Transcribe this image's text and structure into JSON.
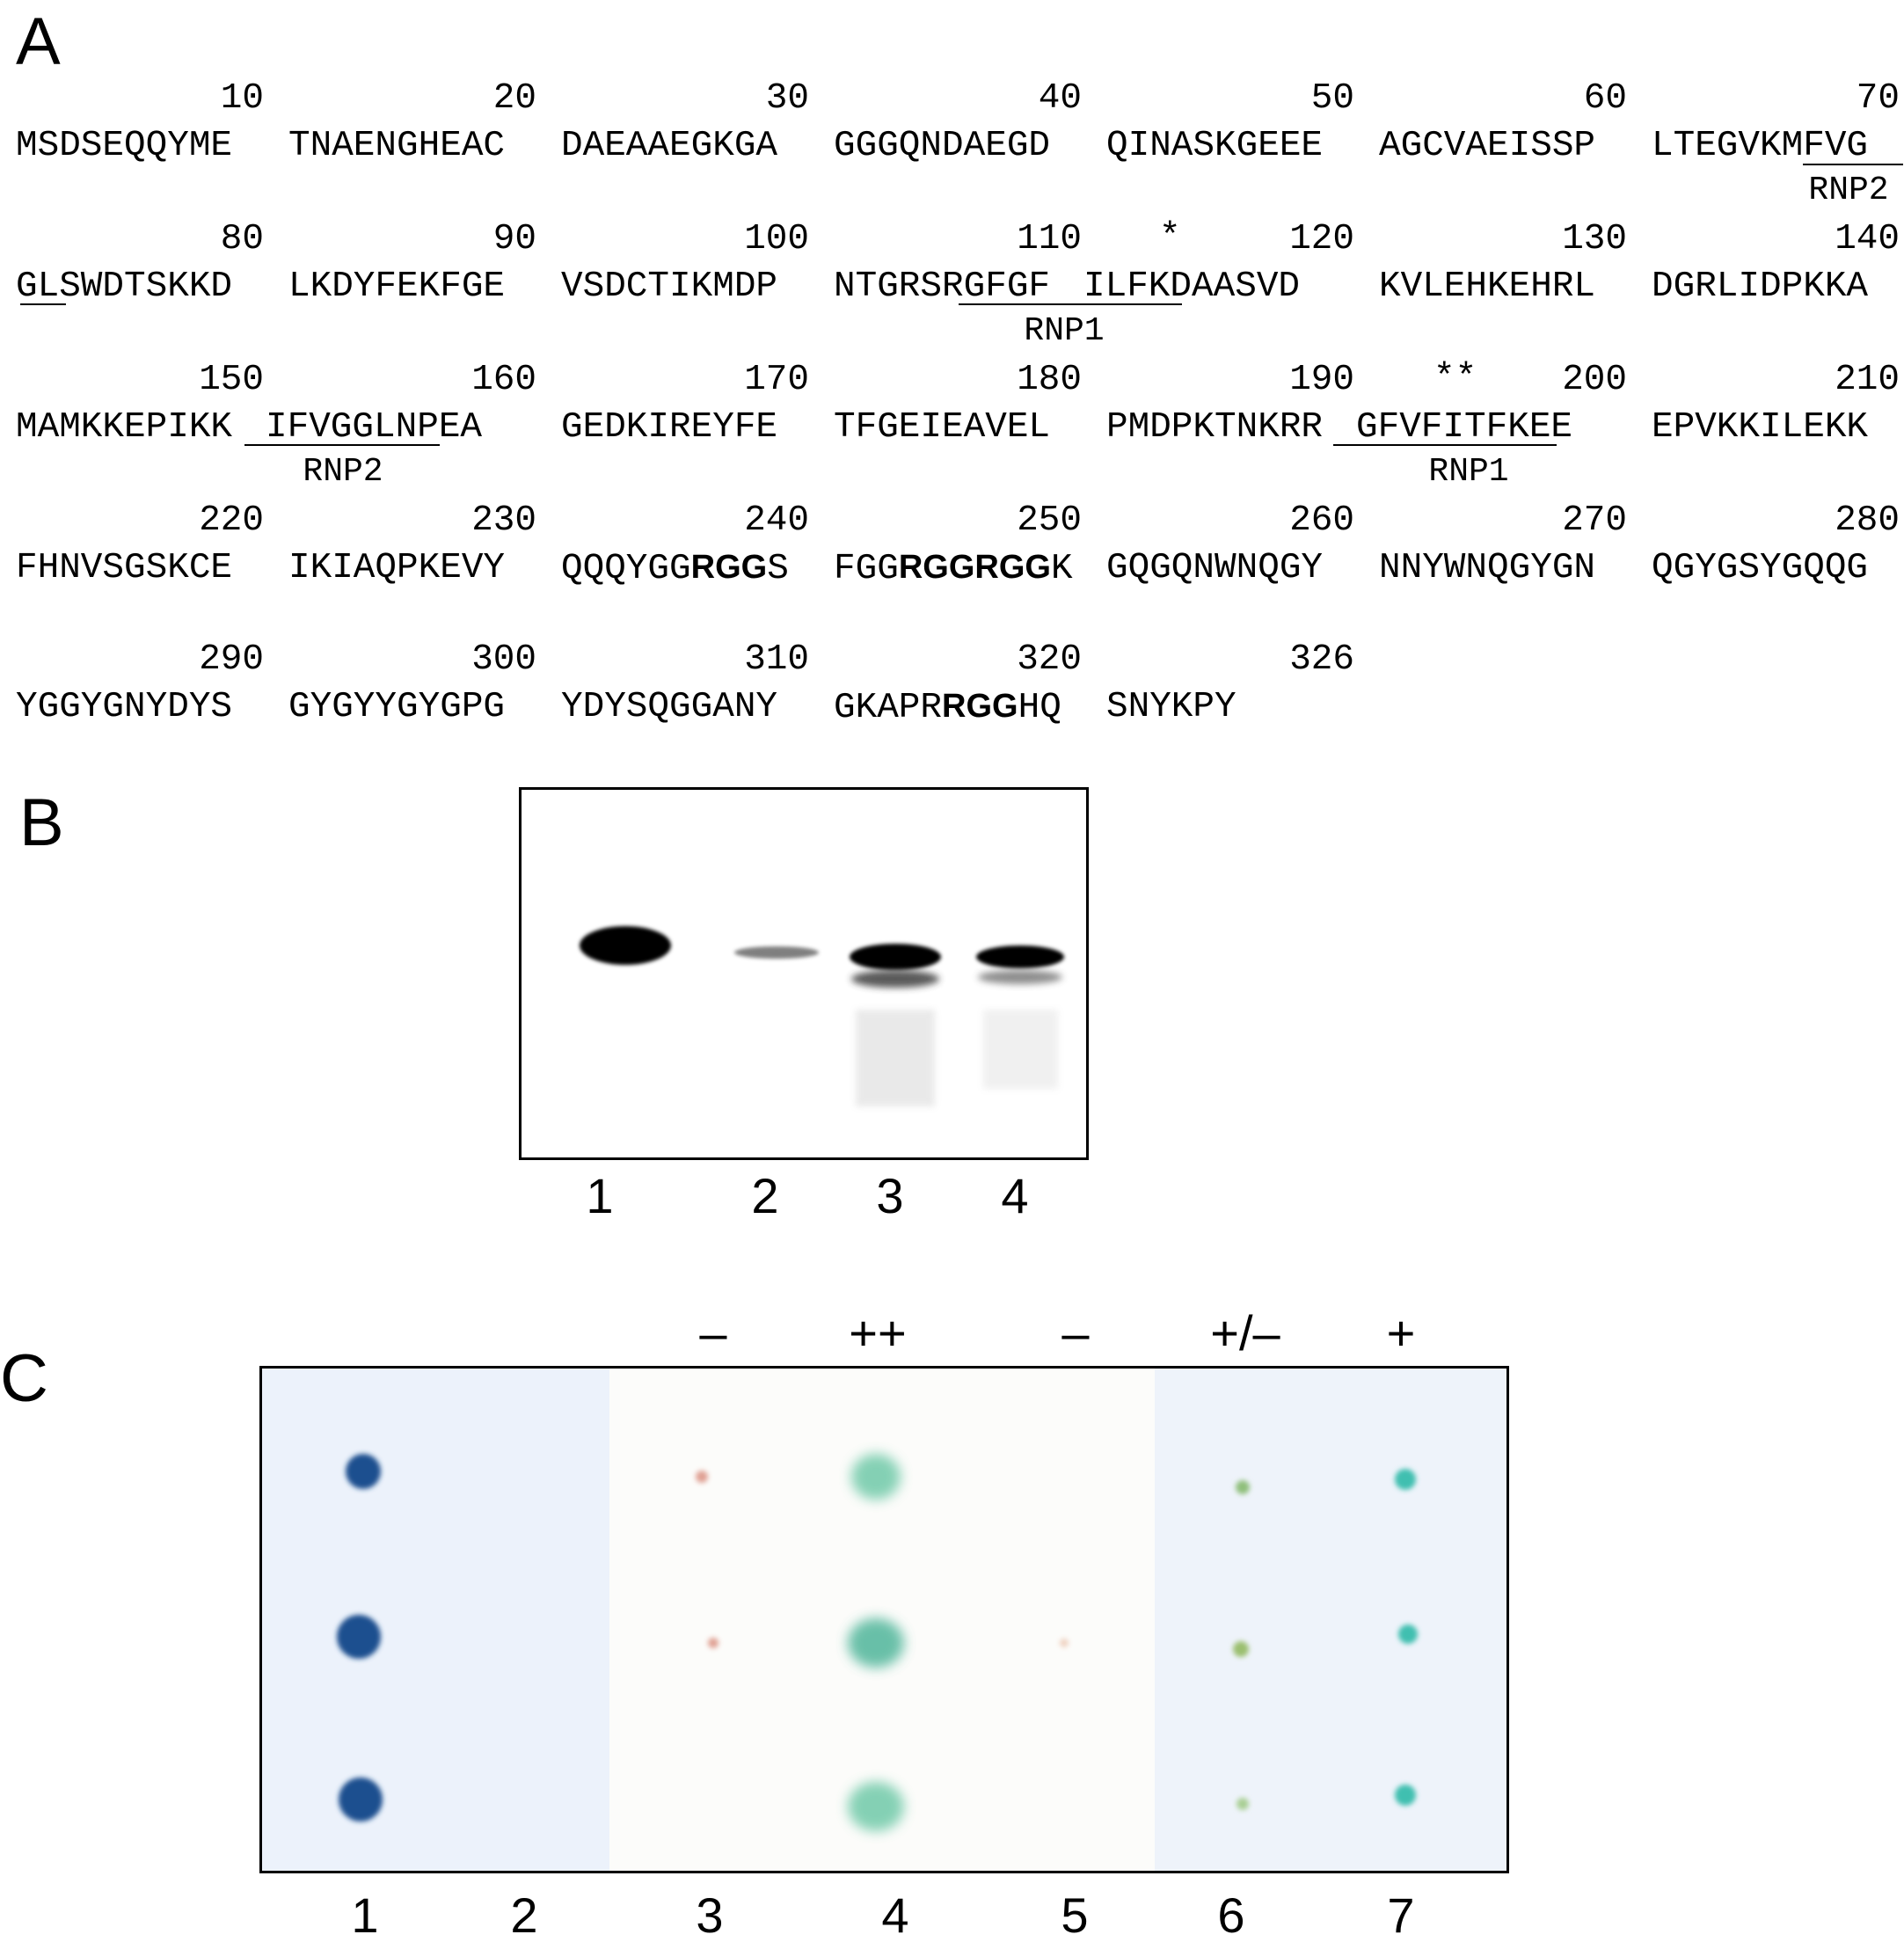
{
  "panels": {
    "a": "A",
    "b": "B",
    "c": "C"
  },
  "sequence": {
    "rows": [
      [
        {
          "num": "10",
          "seq": "MSDSEQQYME"
        },
        {
          "num": "20",
          "seq": "TNAENGHEAC"
        },
        {
          "num": "30",
          "seq": "DAEAAEGKGA"
        },
        {
          "num": "40",
          "seq": "GGGQNDAEGD"
        },
        {
          "num": "50",
          "seq": "QINASKGEEE"
        },
        {
          "num": "60",
          "seq": "AGCVAEISSP"
        },
        {
          "num": "70",
          "seq": "LTEGVKMFVG"
        }
      ],
      [
        {
          "num": "80",
          "seq": "GLSWDTSKKD"
        },
        {
          "num": "90",
          "seq": "LKDYFEKFGE"
        },
        {
          "num": "100",
          "seq": "VSDCTIKMDP"
        },
        {
          "num": "110",
          "seq": "NTGRSRGFGF"
        },
        {
          "num": "120",
          "seq": " ILFKDAASVD"
        },
        {
          "num": "130",
          "seq": "KVLEHKEHRL"
        },
        {
          "num": "140",
          "seq": "DGRLIDPKKA"
        }
      ],
      [
        {
          "num": "150",
          "seq": "MAMKKEPIKK"
        },
        {
          "num": "160",
          "seq": " IFVGGLNPEA"
        },
        {
          "num": "170",
          "seq": "GEDKIREYFE"
        },
        {
          "num": "180",
          "seq": "TFGEIEAVEL"
        },
        {
          "num": "190",
          "seq": "PMDPKTNKRR"
        },
        {
          "num": "200",
          "seq": " GFVFITFKEE"
        },
        {
          "num": "210",
          "seq": "EPVKKILEKK"
        }
      ],
      [
        {
          "num": "220",
          "seq": "FHNVSGSKCE"
        },
        {
          "num": "230",
          "seq": "IKIAQPKEVY"
        },
        {
          "num": "240",
          "seq": "QQQYGGRGGS",
          "bold_from": 6,
          "bold_to": 9
        },
        {
          "num": "250",
          "seq": "FGGRGGRGGK",
          "bold_from": 3,
          "bold_to": 9
        },
        {
          "num": "260",
          "seq": "GQGQNWNQGY"
        },
        {
          "num": "270",
          "seq": "NNYWNQGYGN"
        },
        {
          "num": "280",
          "seq": "QGYGSYGQQG"
        }
      ],
      [
        {
          "num": "290",
          "seq": "YGGYGNYDYS"
        },
        {
          "num": "300",
          "seq": "GYGYYGYGPG"
        },
        {
          "num": "310",
          "seq": "YDYSQGGANY"
        },
        {
          "num": "320",
          "seq": "GKAPRRGGHQ",
          "bold_from": 5,
          "bold_to": 8
        },
        {
          "num": "326",
          "seq": "SNYKPY"
        }
      ]
    ],
    "domains": [
      "RNP2",
      "RNP1",
      "RNP2",
      "RNP1"
    ],
    "stars": [
      "*",
      "**"
    ]
  },
  "gel": {
    "lanes": [
      "1",
      "2",
      "3",
      "4"
    ]
  },
  "blot": {
    "lanes": [
      "1",
      "2",
      "3",
      "4",
      "5",
      "6",
      "7"
    ],
    "grades": [
      "–",
      "++",
      "–",
      "+/–",
      "+"
    ],
    "colors": {
      "strong_blue": "#1f4f8f",
      "teal": "#3fbfb0",
      "green_teal": "#6fc9a8",
      "faint_red": "#d98a7a",
      "background": "#eef3fa"
    }
  }
}
